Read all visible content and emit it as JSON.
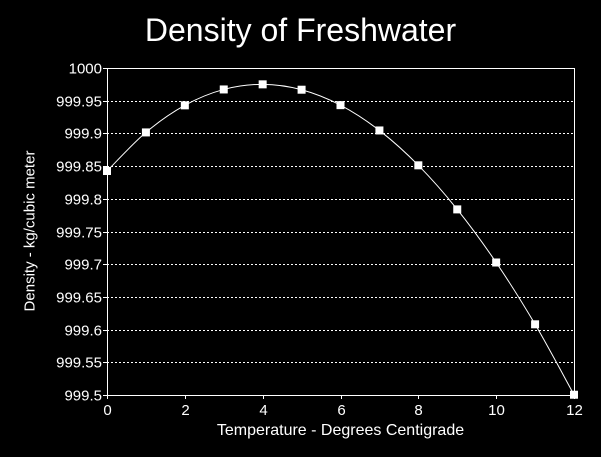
{
  "chart_data": {
    "type": "line",
    "title": "Density of Freshwater",
    "xlabel": "Temperature - Degrees Centigrade",
    "ylabel": "Density - kg/cubic meter",
    "xlim": [
      0,
      12
    ],
    "ylim": [
      999.5,
      1000
    ],
    "xticks": [
      "0",
      "2",
      "4",
      "6",
      "8",
      "10",
      "12"
    ],
    "yticks": [
      "999.5",
      "999.55",
      "999.6",
      "999.65",
      "999.7",
      "999.75",
      "999.8",
      "999.85",
      "999.9",
      "999.95",
      "1000"
    ],
    "grid": "horizontal dotted",
    "series": [
      {
        "x": [
          0,
          1,
          2,
          3,
          4,
          5,
          6,
          7,
          8,
          9,
          10,
          11,
          12
        ],
        "values": [
          999.8425,
          999.9015,
          999.9429,
          999.9672,
          999.975,
          999.9668,
          999.9432,
          999.9045,
          999.8512,
          999.7838,
          999.7026,
          999.6081,
          999.5004
        ]
      }
    ],
    "colors": {
      "background": "#000000",
      "foreground": "#ffffff"
    }
  }
}
